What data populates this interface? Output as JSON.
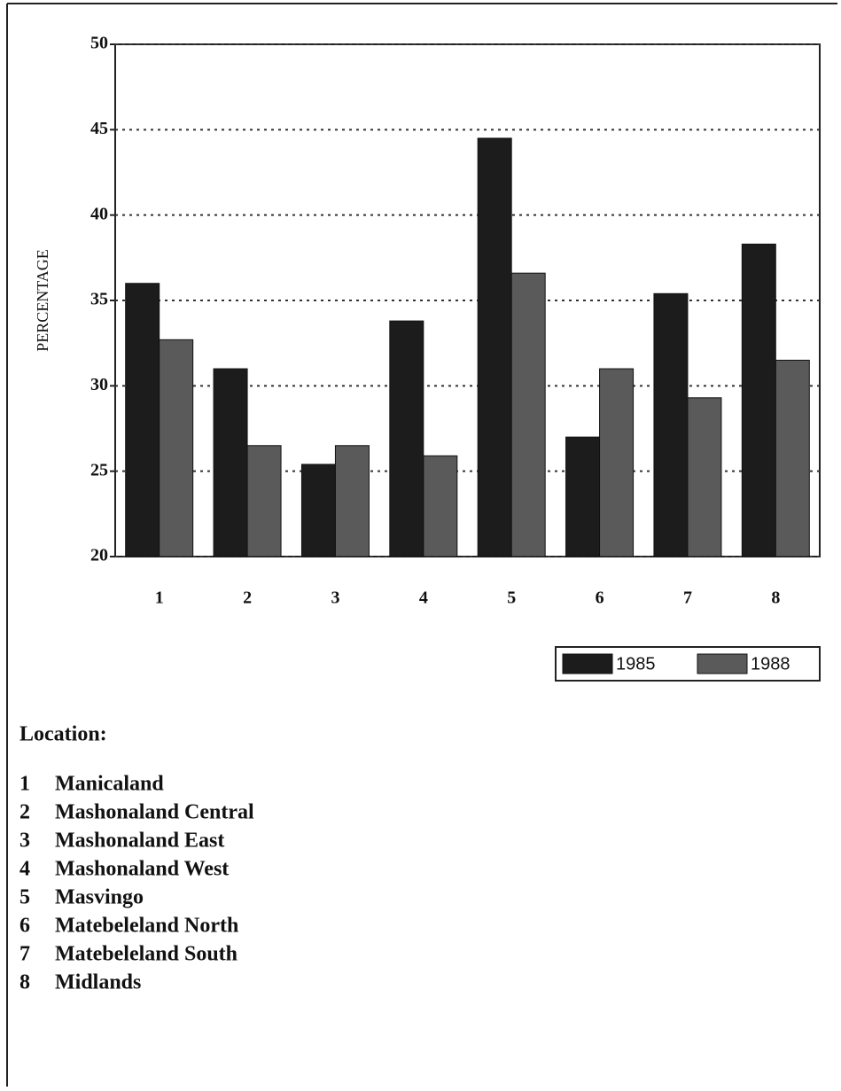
{
  "chart_data": {
    "type": "bar",
    "ylabel": "PERCENTAGE",
    "categories": [
      "1",
      "2",
      "3",
      "4",
      "5",
      "6",
      "7",
      "8"
    ],
    "series": [
      {
        "name": "1985",
        "color": "#1c1c1c",
        "values": [
          36,
          31,
          25.4,
          33.8,
          44.5,
          27,
          35.4,
          38.3
        ]
      },
      {
        "name": "1988",
        "color": "#5a5a5a",
        "values": [
          32.7,
          26.5,
          26.5,
          25.9,
          36.6,
          31,
          29.3,
          31.5
        ]
      }
    ],
    "ylim": [
      20,
      50
    ],
    "yticks": [
      20,
      25,
      30,
      35,
      40,
      45,
      50
    ],
    "grid": true,
    "location_title": "Location:",
    "locations": [
      "Manicaland",
      "Mashonaland Central",
      "Mashonaland East",
      "Mashonaland West",
      "Masvingo",
      "Matebeleland North",
      "Matebeleland South",
      "Midlands"
    ]
  }
}
